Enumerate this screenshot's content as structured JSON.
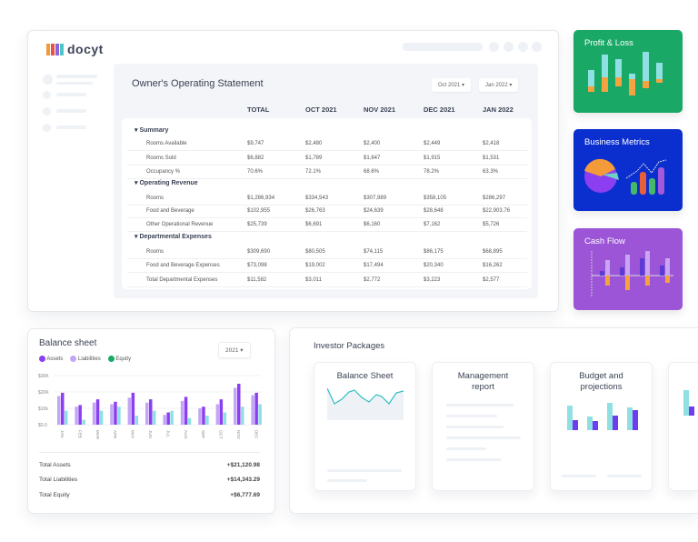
{
  "brand": {
    "logo_text": "docyt"
  },
  "statement": {
    "title": "Owner's Operating Statement",
    "from": "Oct 2021",
    "to": "Jan 2022",
    "columns": [
      "TOTAL",
      "OCT 2021",
      "NOV 2021",
      "DEC 2021",
      "JAN 2022"
    ],
    "sections": [
      {
        "name": "Summary",
        "rows": [
          {
            "label": "Rooms Available",
            "values": [
              "$9,747",
              "$2,480",
              "$2,400",
              "$2,449",
              "$2,418"
            ]
          },
          {
            "label": "Rooms Sold",
            "values": [
              "$6,882",
              "$1,789",
              "$1,647",
              "$1,915",
              "$1,531"
            ]
          },
          {
            "label": "Occupancy %",
            "values": [
              "70.6%",
              "72.1%",
              "68.6%",
              "78.2%",
              "63.3%"
            ]
          }
        ]
      },
      {
        "name": "Operating Revenue",
        "rows": [
          {
            "label": "Rooms",
            "values": [
              "$1,286,934",
              "$334,543",
              "$307,989",
              "$358,105",
              "$286,297"
            ]
          },
          {
            "label": "Food and Beverage",
            "values": [
              "$102,955",
              "$26,763",
              "$24,639",
              "$28,648",
              "$22,903.76"
            ]
          },
          {
            "label": "Other Operational Revenue",
            "values": [
              "$25,739",
              "$6,691",
              "$6,160",
              "$7,162",
              "$5,726"
            ]
          }
        ]
      },
      {
        "name": "Departmental Expenses",
        "rows": [
          {
            "label": "Rooms",
            "values": [
              "$309,690",
              "$80,505",
              "$74,115",
              "$86,175",
              "$68,895"
            ]
          },
          {
            "label": "Food and Beverage Expenses",
            "values": [
              "$73,098",
              "$19,002",
              "$17,494",
              "$20,340",
              "$16,262"
            ]
          },
          {
            "label": "Total Departmental Expenses",
            "values": [
              "$11,582",
              "$3,011",
              "$2,772",
              "$3,223",
              "$2,577"
            ]
          }
        ]
      }
    ]
  },
  "tiles": [
    {
      "label": "Profit & Loss",
      "color": "#1aa866"
    },
    {
      "label": "Business Metrics",
      "color": "#0b2fcf"
    },
    {
      "label": "Cash Flow",
      "color": "#9b55d6"
    }
  ],
  "balance": {
    "title": "Balance sheet",
    "year": "2021",
    "totals": [
      {
        "label": "Total Assets",
        "value": "+$21,120.98"
      },
      {
        "label": "Total Liabilities",
        "value": "+$14,343.29"
      },
      {
        "label": "Total Equity",
        "value": "+$6,777.69"
      }
    ]
  },
  "chart_data": {
    "type": "bar",
    "categories": [
      "JAN",
      "FEB",
      "MAR",
      "APR",
      "MAY",
      "JUN",
      "JUL",
      "AUG",
      "SEP",
      "OCT",
      "NOV",
      "DEC"
    ],
    "yticks": [
      "$0.0",
      "$10k",
      "$20K",
      "$30K"
    ],
    "ylim": [
      0,
      30000
    ],
    "legend": "top-left",
    "series": [
      {
        "name": "Liabilities",
        "color": "#c3a6f5",
        "values": [
          17500,
          11000,
          13500,
          12500,
          16500,
          13500,
          6000,
          14500,
          10000,
          12500,
          22500,
          18000
        ]
      },
      {
        "name": "Assets",
        "color": "#8b3ff0",
        "values": [
          19500,
          12000,
          15500,
          14000,
          19500,
          15500,
          7500,
          17000,
          11000,
          15500,
          25000,
          19500
        ]
      },
      {
        "name": "Equity",
        "color": "#8fe0e3",
        "values": [
          8500,
          3000,
          8500,
          11000,
          5500,
          8500,
          8500,
          4000,
          5500,
          7500,
          11000,
          12500
        ]
      }
    ]
  },
  "investor": {
    "title": "Investor Packages",
    "cards": [
      "Balance Sheet",
      "Management report",
      "Budget and projections"
    ]
  }
}
